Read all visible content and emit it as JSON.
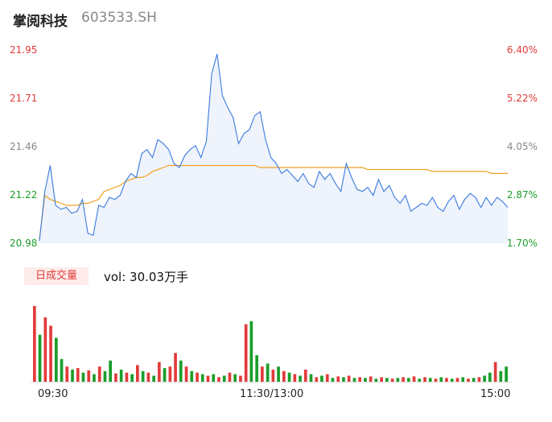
{
  "header": {
    "name": "掌阅科技",
    "code": "603533.SH"
  },
  "price_axis": {
    "left": [
      {
        "value": "21.95",
        "color": "red"
      },
      {
        "value": "21.71",
        "color": "red"
      },
      {
        "value": "21.46",
        "color": "gray"
      },
      {
        "value": "21.22",
        "color": "green"
      },
      {
        "value": "20.98",
        "color": "green"
      }
    ],
    "right": [
      {
        "value": "6.40%",
        "color": "red"
      },
      {
        "value": "5.22%",
        "color": "red"
      },
      {
        "value": "4.05%",
        "color": "gray"
      },
      {
        "value": "2.87%",
        "color": "green"
      },
      {
        "value": "1.70%",
        "color": "green"
      }
    ]
  },
  "volume": {
    "badge": "日成交量",
    "text": "vol: 30.03万手"
  },
  "time_axis": [
    "09:30",
    "11:30/13:00",
    "15:00"
  ],
  "colors": {
    "price_line": "#3b7be0",
    "avg_line": "#f0a01e",
    "up": "#e23b3b",
    "down": "#1a9e2b",
    "fill": "#eef3fc"
  },
  "chart_data": {
    "type": "line",
    "title": "",
    "ylim": [
      20.98,
      21.95
    ],
    "series": [
      {
        "values": [
          20.99,
          21.24,
          21.37,
          21.17,
          21.15,
          21.16,
          21.13,
          21.14,
          21.2,
          21.03,
          21.02,
          21.17,
          21.16,
          21.21,
          21.2,
          21.22,
          21.29,
          21.33,
          21.31,
          21.43,
          21.45,
          21.41,
          21.5,
          21.48,
          21.45,
          21.38,
          21.36,
          21.42,
          21.45,
          21.47,
          21.41,
          21.49,
          21.83,
          21.93,
          21.72,
          21.66,
          21.61,
          21.48,
          21.53,
          21.55,
          21.62,
          21.64,
          21.5,
          21.41,
          21.38,
          21.33,
          21.35,
          21.32,
          21.29,
          21.33,
          21.28,
          21.26,
          21.34,
          21.3,
          21.33,
          21.28,
          21.24,
          21.38,
          21.31,
          21.25,
          21.24,
          21.26,
          21.22,
          21.3,
          21.24,
          21.27,
          21.21,
          21.18,
          21.22,
          21.14,
          21.16,
          21.18,
          21.17,
          21.21,
          21.16,
          21.14,
          21.19,
          21.22,
          21.15,
          21.2,
          21.23,
          21.21,
          21.16,
          21.21,
          21.17,
          21.21,
          21.19,
          21.16
        ]
      },
      {
        "values": [
          21.0,
          21.22,
          21.2,
          21.19,
          21.18,
          21.17,
          21.17,
          21.17,
          21.18,
          21.18,
          21.19,
          21.2,
          21.24,
          21.25,
          21.26,
          21.27,
          21.29,
          21.3,
          21.31,
          21.31,
          21.32,
          21.34,
          21.35,
          21.36,
          21.37,
          21.37,
          21.37,
          21.37,
          21.37,
          21.37,
          21.37,
          21.37,
          21.37,
          21.37,
          21.37,
          21.37,
          21.37,
          21.37,
          21.37,
          21.37,
          21.37,
          21.36,
          21.36,
          21.36,
          21.36,
          21.36,
          21.36,
          21.36,
          21.36,
          21.36,
          21.36,
          21.36,
          21.36,
          21.36,
          21.36,
          21.36,
          21.36,
          21.36,
          21.36,
          21.36,
          21.36,
          21.35,
          21.35,
          21.35,
          21.35,
          21.35,
          21.35,
          21.35,
          21.35,
          21.35,
          21.35,
          21.35,
          21.35,
          21.34,
          21.34,
          21.34,
          21.34,
          21.34,
          21.34,
          21.34,
          21.34,
          21.34,
          21.34,
          21.34,
          21.33,
          21.33,
          21.33,
          21.33
        ]
      }
    ],
    "volume_bars": [
      {
        "v": 1.0,
        "up": true
      },
      {
        "v": 0.62,
        "up": false
      },
      {
        "v": 0.85,
        "up": true
      },
      {
        "v": 0.74,
        "up": true
      },
      {
        "v": 0.58,
        "up": false
      },
      {
        "v": 0.3,
        "up": false
      },
      {
        "v": 0.2,
        "up": true
      },
      {
        "v": 0.16,
        "up": false
      },
      {
        "v": 0.18,
        "up": true
      },
      {
        "v": 0.12,
        "up": false
      },
      {
        "v": 0.15,
        "up": true
      },
      {
        "v": 0.1,
        "up": false
      },
      {
        "v": 0.2,
        "up": true
      },
      {
        "v": 0.14,
        "up": false
      },
      {
        "v": 0.28,
        "up": false
      },
      {
        "v": 0.11,
        "up": true
      },
      {
        "v": 0.16,
        "up": false
      },
      {
        "v": 0.12,
        "up": true
      },
      {
        "v": 0.1,
        "up": false
      },
      {
        "v": 0.22,
        "up": true
      },
      {
        "v": 0.14,
        "up": false
      },
      {
        "v": 0.12,
        "up": true
      },
      {
        "v": 0.08,
        "up": false
      },
      {
        "v": 0.26,
        "up": true
      },
      {
        "v": 0.18,
        "up": false
      },
      {
        "v": 0.2,
        "up": true
      },
      {
        "v": 0.38,
        "up": true
      },
      {
        "v": 0.28,
        "up": false
      },
      {
        "v": 0.2,
        "up": true
      },
      {
        "v": 0.14,
        "up": false
      },
      {
        "v": 0.12,
        "up": true
      },
      {
        "v": 0.1,
        "up": false
      },
      {
        "v": 0.08,
        "up": true
      },
      {
        "v": 0.1,
        "up": false
      },
      {
        "v": 0.06,
        "up": true
      },
      {
        "v": 0.08,
        "up": false
      },
      {
        "v": 0.12,
        "up": true
      },
      {
        "v": 0.1,
        "up": false
      },
      {
        "v": 0.08,
        "up": true
      },
      {
        "v": 0.76,
        "up": true
      },
      {
        "v": 0.8,
        "up": false
      },
      {
        "v": 0.35,
        "up": false
      },
      {
        "v": 0.2,
        "up": true
      },
      {
        "v": 0.24,
        "up": false
      },
      {
        "v": 0.16,
        "up": true
      },
      {
        "v": 0.2,
        "up": false
      },
      {
        "v": 0.14,
        "up": true
      },
      {
        "v": 0.12,
        "up": false
      },
      {
        "v": 0.1,
        "up": true
      },
      {
        "v": 0.08,
        "up": false
      },
      {
        "v": 0.16,
        "up": true
      },
      {
        "v": 0.1,
        "up": false
      },
      {
        "v": 0.06,
        "up": true
      },
      {
        "v": 0.08,
        "up": false
      },
      {
        "v": 0.1,
        "up": true
      },
      {
        "v": 0.05,
        "up": false
      },
      {
        "v": 0.07,
        "up": true
      },
      {
        "v": 0.06,
        "up": false
      },
      {
        "v": 0.08,
        "up": true
      },
      {
        "v": 0.05,
        "up": false
      },
      {
        "v": 0.06,
        "up": true
      },
      {
        "v": 0.05,
        "up": false
      },
      {
        "v": 0.07,
        "up": true
      },
      {
        "v": 0.04,
        "up": false
      },
      {
        "v": 0.06,
        "up": true
      },
      {
        "v": 0.05,
        "up": false
      },
      {
        "v": 0.04,
        "up": true
      },
      {
        "v": 0.05,
        "up": false
      },
      {
        "v": 0.06,
        "up": true
      },
      {
        "v": 0.05,
        "up": false
      },
      {
        "v": 0.07,
        "up": true
      },
      {
        "v": 0.04,
        "up": false
      },
      {
        "v": 0.06,
        "up": true
      },
      {
        "v": 0.05,
        "up": false
      },
      {
        "v": 0.04,
        "up": true
      },
      {
        "v": 0.06,
        "up": false
      },
      {
        "v": 0.05,
        "up": true
      },
      {
        "v": 0.04,
        "up": false
      },
      {
        "v": 0.05,
        "up": true
      },
      {
        "v": 0.06,
        "up": false
      },
      {
        "v": 0.04,
        "up": true
      },
      {
        "v": 0.05,
        "up": false
      },
      {
        "v": 0.06,
        "up": true
      },
      {
        "v": 0.08,
        "up": false
      },
      {
        "v": 0.12,
        "up": false
      },
      {
        "v": 0.26,
        "up": true
      },
      {
        "v": 0.14,
        "up": false
      },
      {
        "v": 0.2,
        "up": false
      }
    ]
  }
}
